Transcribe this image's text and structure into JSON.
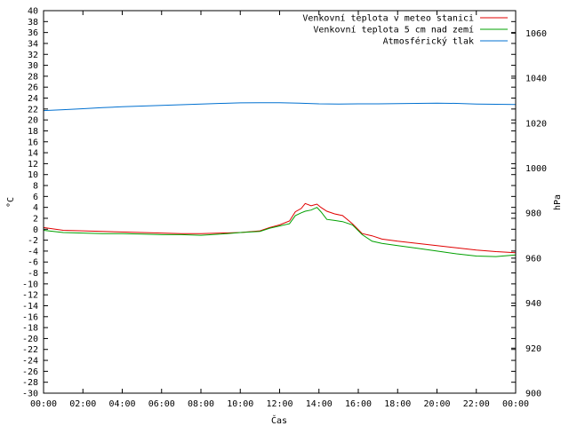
{
  "chart_data": {
    "type": "line",
    "xlabel": "Čas",
    "ylabel": "°C",
    "y2label": "hPa",
    "grid": false,
    "legend_placement": "top-right",
    "xlim": [
      0,
      24
    ],
    "ylim": [
      -30,
      40
    ],
    "y2lim": [
      900,
      1070
    ],
    "x_ticks": [
      "00:00",
      "02:00",
      "04:00",
      "06:00",
      "08:00",
      "10:00",
      "12:00",
      "14:00",
      "16:00",
      "18:00",
      "20:00",
      "22:00",
      "00:00"
    ],
    "y_ticks": [
      40,
      38,
      36,
      34,
      32,
      30,
      28,
      26,
      24,
      22,
      20,
      18,
      16,
      14,
      12,
      10,
      8,
      6,
      4,
      2,
      0,
      -2,
      -4,
      -6,
      -8,
      -10,
      -12,
      -14,
      -16,
      -18,
      -20,
      -22,
      -24,
      -26,
      -28,
      -30
    ],
    "y2_ticks": [
      1060,
      1040,
      1020,
      1000,
      980,
      960,
      940,
      920,
      900
    ],
    "series": [
      {
        "name": "Venkovní teplota v meteo stanici",
        "color": "#e00000",
        "axis": "left",
        "x": [
          0,
          1,
          2,
          3,
          4,
          5,
          6,
          7,
          8,
          9,
          10,
          11,
          11.5,
          12,
          12.5,
          12.8,
          13.1,
          13.3,
          13.6,
          13.9,
          14.1,
          14.4,
          14.8,
          15.2,
          15.7,
          16.2,
          16.7,
          17.2,
          18,
          19,
          20,
          21,
          22,
          23,
          24
        ],
        "y": [
          0.3,
          -0.2,
          -0.3,
          -0.4,
          -0.5,
          -0.6,
          -0.7,
          -0.8,
          -0.8,
          -0.7,
          -0.6,
          -0.3,
          0.3,
          0.8,
          1.5,
          3.2,
          3.8,
          4.7,
          4.3,
          4.6,
          4.0,
          3.3,
          2.8,
          2.5,
          1.0,
          -0.8,
          -1.2,
          -1.8,
          -2.2,
          -2.6,
          -3.0,
          -3.4,
          -3.8,
          -4.1,
          -4.3
        ]
      },
      {
        "name": "Venkovní teplota 5 cm nad zemí",
        "color": "#00a000",
        "axis": "left",
        "x": [
          0,
          1,
          2,
          3,
          4,
          5,
          6,
          7,
          8,
          9,
          10,
          11,
          11.5,
          12,
          12.5,
          12.8,
          13.1,
          13.3,
          13.6,
          13.9,
          14.1,
          14.4,
          14.8,
          15.2,
          15.7,
          16.2,
          16.7,
          17.2,
          18,
          19,
          20,
          21,
          22,
          23,
          24
        ],
        "y": [
          -0.2,
          -0.6,
          -0.7,
          -0.8,
          -0.8,
          -0.9,
          -1.0,
          -1.0,
          -1.1,
          -0.9,
          -0.6,
          -0.4,
          0.2,
          0.6,
          1.0,
          2.5,
          3.0,
          3.3,
          3.5,
          4.0,
          3.2,
          1.8,
          1.6,
          1.4,
          0.8,
          -1.0,
          -2.2,
          -2.6,
          -3.0,
          -3.5,
          -4.0,
          -4.5,
          -4.9,
          -5.0,
          -4.7
        ]
      },
      {
        "name": "Atmosférický tlak",
        "color": "#0070d0",
        "axis": "right",
        "x": [
          0,
          1,
          2,
          3,
          4,
          5,
          6,
          7,
          8,
          9,
          10,
          11,
          12,
          13,
          14,
          15,
          16,
          17,
          18,
          19,
          20,
          21,
          22,
          23,
          24
        ],
        "y": [
          1025.6,
          1026.0,
          1026.4,
          1026.9,
          1027.3,
          1027.6,
          1027.9,
          1028.2,
          1028.5,
          1028.8,
          1029.0,
          1029.1,
          1029.1,
          1028.9,
          1028.6,
          1028.5,
          1028.6,
          1028.6,
          1028.7,
          1028.8,
          1028.9,
          1028.8,
          1028.5,
          1028.4,
          1028.3
        ]
      }
    ]
  }
}
